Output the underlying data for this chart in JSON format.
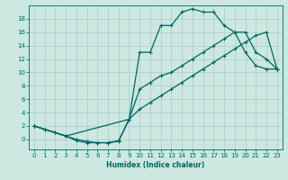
{
  "xlabel": "Humidex (Indice chaleur)",
  "bg_color": "#cce8e0",
  "grid_color": "#aacccc",
  "line_color": "#006666",
  "xlim": [
    -0.5,
    23.5
  ],
  "ylim": [
    -1.5,
    20
  ],
  "xticks": [
    0,
    1,
    2,
    3,
    4,
    5,
    6,
    7,
    8,
    9,
    10,
    11,
    12,
    13,
    14,
    15,
    16,
    17,
    18,
    19,
    20,
    21,
    22,
    23
  ],
  "yticks": [
    0,
    2,
    4,
    6,
    8,
    10,
    12,
    14,
    16,
    18
  ],
  "line1_x": [
    0,
    1,
    2,
    3,
    4,
    5,
    6,
    7,
    8,
    9,
    10,
    11,
    12,
    13,
    14,
    15,
    16,
    17,
    18,
    19,
    20,
    21,
    22,
    23
  ],
  "line1_y": [
    2,
    1.5,
    1.0,
    0.5,
    -0.2,
    -0.5,
    -0.5,
    -0.5,
    -0.3,
    3.0,
    13.0,
    13.0,
    17.0,
    17.0,
    19.0,
    19.5,
    19.0,
    19.0,
    17.0,
    16.0,
    13.0,
    11.0,
    10.5,
    10.5
  ],
  "line2_x": [
    0,
    1,
    2,
    3,
    4,
    5,
    6,
    7,
    8,
    9,
    10,
    11,
    12,
    13,
    14,
    15,
    16,
    17,
    18,
    19,
    20,
    21,
    22,
    23
  ],
  "line2_y": [
    2,
    1.5,
    1.0,
    0.5,
    0.0,
    -0.3,
    -0.5,
    -0.5,
    -0.2,
    3.0,
    4.5,
    5.5,
    6.5,
    7.5,
    8.5,
    9.5,
    10.5,
    11.5,
    12.5,
    13.5,
    14.5,
    15.5,
    16.0,
    10.5
  ],
  "line3_x": [
    0,
    3,
    9,
    10,
    11,
    12,
    13,
    14,
    15,
    16,
    17,
    18,
    19,
    20,
    21,
    22,
    23
  ],
  "line3_y": [
    2,
    0.5,
    3.0,
    7.5,
    8.5,
    9.5,
    10.0,
    11.0,
    12.0,
    13.0,
    14.0,
    15.0,
    16.0,
    16.0,
    13.0,
    12.0,
    10.5
  ]
}
